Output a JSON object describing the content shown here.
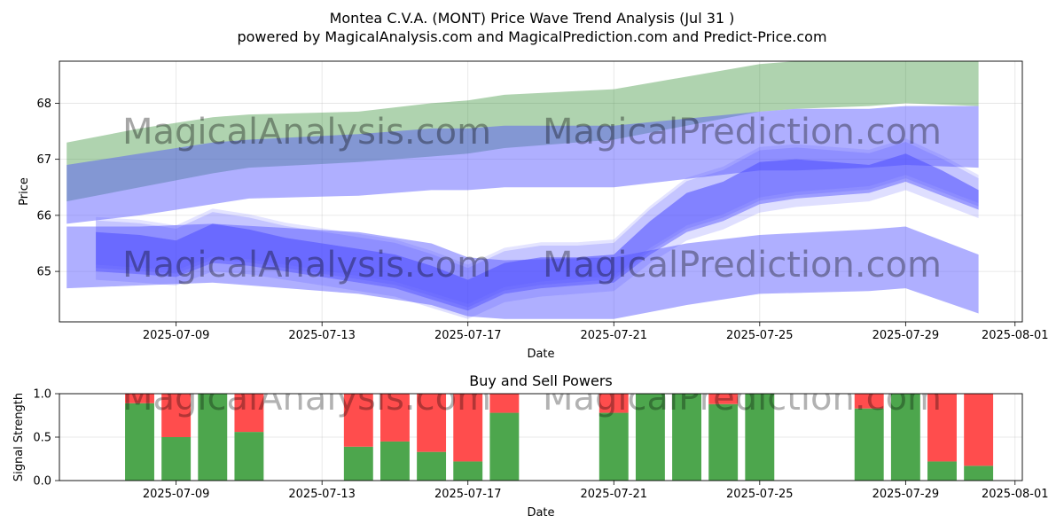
{
  "title": "Montea C.V.A. (MONT) Price Wave Trend Analysis (Jul 31 )",
  "subtitle": "powered by MagicalAnalysis.com and MagicalPrediction.com and Predict-Price.com",
  "watermarks": [
    "MagicalAnalysis.com",
    "MagicalPrediction.com"
  ],
  "colors": {
    "green_band": "#2e8b2e",
    "blue_band": "#4d4dff",
    "buy": "#4da64d",
    "sell": "#ff4d4d"
  },
  "chart_data": [
    {
      "type": "area",
      "xlabel": "Date",
      "ylabel": "Price",
      "xlim": [
        "2025-07-05.8",
        "2025-08-01.2"
      ],
      "ylim": [
        64.1,
        68.75
      ],
      "x_ticks": [
        "2025-07-09",
        "2025-07-13",
        "2025-07-17",
        "2025-07-21",
        "2025-07-25",
        "2025-07-29",
        "2025-08-01"
      ],
      "y_ticks": [
        65,
        66,
        67,
        68
      ],
      "grid": true,
      "series": [
        {
          "kind": "green-band",
          "x": [
            "2025-07-06",
            "2025-07-08",
            "2025-07-10",
            "2025-07-11",
            "2025-07-14",
            "2025-07-16",
            "2025-07-17",
            "2025-07-18",
            "2025-07-21",
            "2025-07-25",
            "2025-07-26",
            "2025-07-28",
            "2025-07-29",
            "2025-07-31"
          ],
          "lower": [
            66.25,
            66.5,
            66.75,
            66.85,
            66.95,
            67.05,
            67.1,
            67.2,
            67.35,
            67.85,
            67.9,
            67.95,
            68.0,
            67.95
          ],
          "upper": [
            67.3,
            67.55,
            67.75,
            67.8,
            67.85,
            68.0,
            68.05,
            68.15,
            68.25,
            68.7,
            68.75,
            68.75,
            68.75,
            68.75
          ]
        },
        {
          "kind": "blue-band",
          "x": [
            "2025-07-06",
            "2025-07-08",
            "2025-07-10",
            "2025-07-11",
            "2025-07-14",
            "2025-07-16",
            "2025-07-17",
            "2025-07-18",
            "2025-07-21",
            "2025-07-25",
            "2025-07-26",
            "2025-07-28",
            "2025-07-29",
            "2025-07-31"
          ],
          "lower": [
            65.85,
            66.0,
            66.2,
            66.3,
            66.35,
            66.45,
            66.45,
            66.5,
            66.5,
            66.8,
            66.8,
            66.85,
            66.9,
            66.85
          ],
          "upper": [
            66.9,
            67.1,
            67.3,
            67.35,
            67.45,
            67.55,
            67.55,
            67.6,
            67.6,
            67.85,
            67.9,
            67.9,
            67.95,
            67.95
          ]
        },
        {
          "kind": "blue-band",
          "x": [
            "2025-07-06",
            "2025-07-08",
            "2025-07-10",
            "2025-07-14",
            "2025-07-16",
            "2025-07-17",
            "2025-07-18",
            "2025-07-21",
            "2025-07-23",
            "2025-07-25",
            "2025-07-28",
            "2025-07-29",
            "2025-07-31"
          ],
          "lower": [
            64.7,
            64.75,
            64.8,
            64.6,
            64.4,
            64.2,
            64.15,
            64.15,
            64.4,
            64.6,
            64.65,
            64.7,
            64.25
          ],
          "upper": [
            65.8,
            65.8,
            65.85,
            65.7,
            65.5,
            65.25,
            65.2,
            65.25,
            65.5,
            65.65,
            65.75,
            65.8,
            65.3
          ]
        },
        {
          "kind": "blue-wave",
          "x": [
            "2025-07-06.8",
            "2025-07-08",
            "2025-07-09",
            "2025-07-10",
            "2025-07-11",
            "2025-07-12",
            "2025-07-13",
            "2025-07-14",
            "2025-07-15",
            "2025-07-16",
            "2025-07-17",
            "2025-07-18",
            "2025-07-19",
            "2025-07-20",
            "2025-07-21",
            "2025-07-22",
            "2025-07-23",
            "2025-07-24",
            "2025-07-25",
            "2025-07-26",
            "2025-07-27",
            "2025-07-28",
            "2025-07-29",
            "2025-07-30",
            "2025-07-31"
          ],
          "lower": [
            65.0,
            64.95,
            64.9,
            65.15,
            65.1,
            65.0,
            64.9,
            64.8,
            64.7,
            64.5,
            64.3,
            64.6,
            64.7,
            64.75,
            64.8,
            65.3,
            65.7,
            65.9,
            66.2,
            66.3,
            66.35,
            66.4,
            66.6,
            66.35,
            66.1
          ],
          "upper": [
            65.7,
            65.65,
            65.55,
            65.85,
            65.75,
            65.6,
            65.5,
            65.4,
            65.3,
            65.1,
            64.85,
            65.15,
            65.25,
            65.25,
            65.3,
            65.9,
            66.4,
            66.6,
            66.95,
            67.0,
            66.95,
            66.9,
            67.1,
            66.8,
            66.45
          ]
        }
      ]
    },
    {
      "type": "bar",
      "title": "Buy and Sell Powers",
      "xlabel": "Date",
      "ylabel": "Signal Strength",
      "ylim": [
        0,
        1.0
      ],
      "y_ticks": [
        "0.0",
        "0.5",
        "1.0"
      ],
      "x_ticks": [
        "2025-07-09",
        "2025-07-13",
        "2025-07-17",
        "2025-07-21",
        "2025-07-25",
        "2025-07-29",
        "2025-08-01"
      ],
      "grid": true,
      "x": [
        "2025-07-08",
        "2025-07-09",
        "2025-07-10",
        "2025-07-11",
        "2025-07-14",
        "2025-07-15",
        "2025-07-16",
        "2025-07-17",
        "2025-07-18",
        "2025-07-21",
        "2025-07-22",
        "2025-07-23",
        "2025-07-24",
        "2025-07-25",
        "2025-07-28",
        "2025-07-29",
        "2025-07-30",
        "2025-07-31"
      ],
      "buy": [
        0.89,
        0.5,
        1.0,
        0.56,
        0.39,
        0.45,
        0.33,
        0.22,
        0.78,
        0.78,
        1.0,
        1.0,
        0.88,
        1.0,
        0.83,
        1.0,
        0.22,
        0.17
      ],
      "sell": [
        0.11,
        0.5,
        0.0,
        0.44,
        0.61,
        0.55,
        0.67,
        0.78,
        0.22,
        0.22,
        0.0,
        0.0,
        0.12,
        0.0,
        0.17,
        0.0,
        0.78,
        0.83
      ]
    }
  ]
}
